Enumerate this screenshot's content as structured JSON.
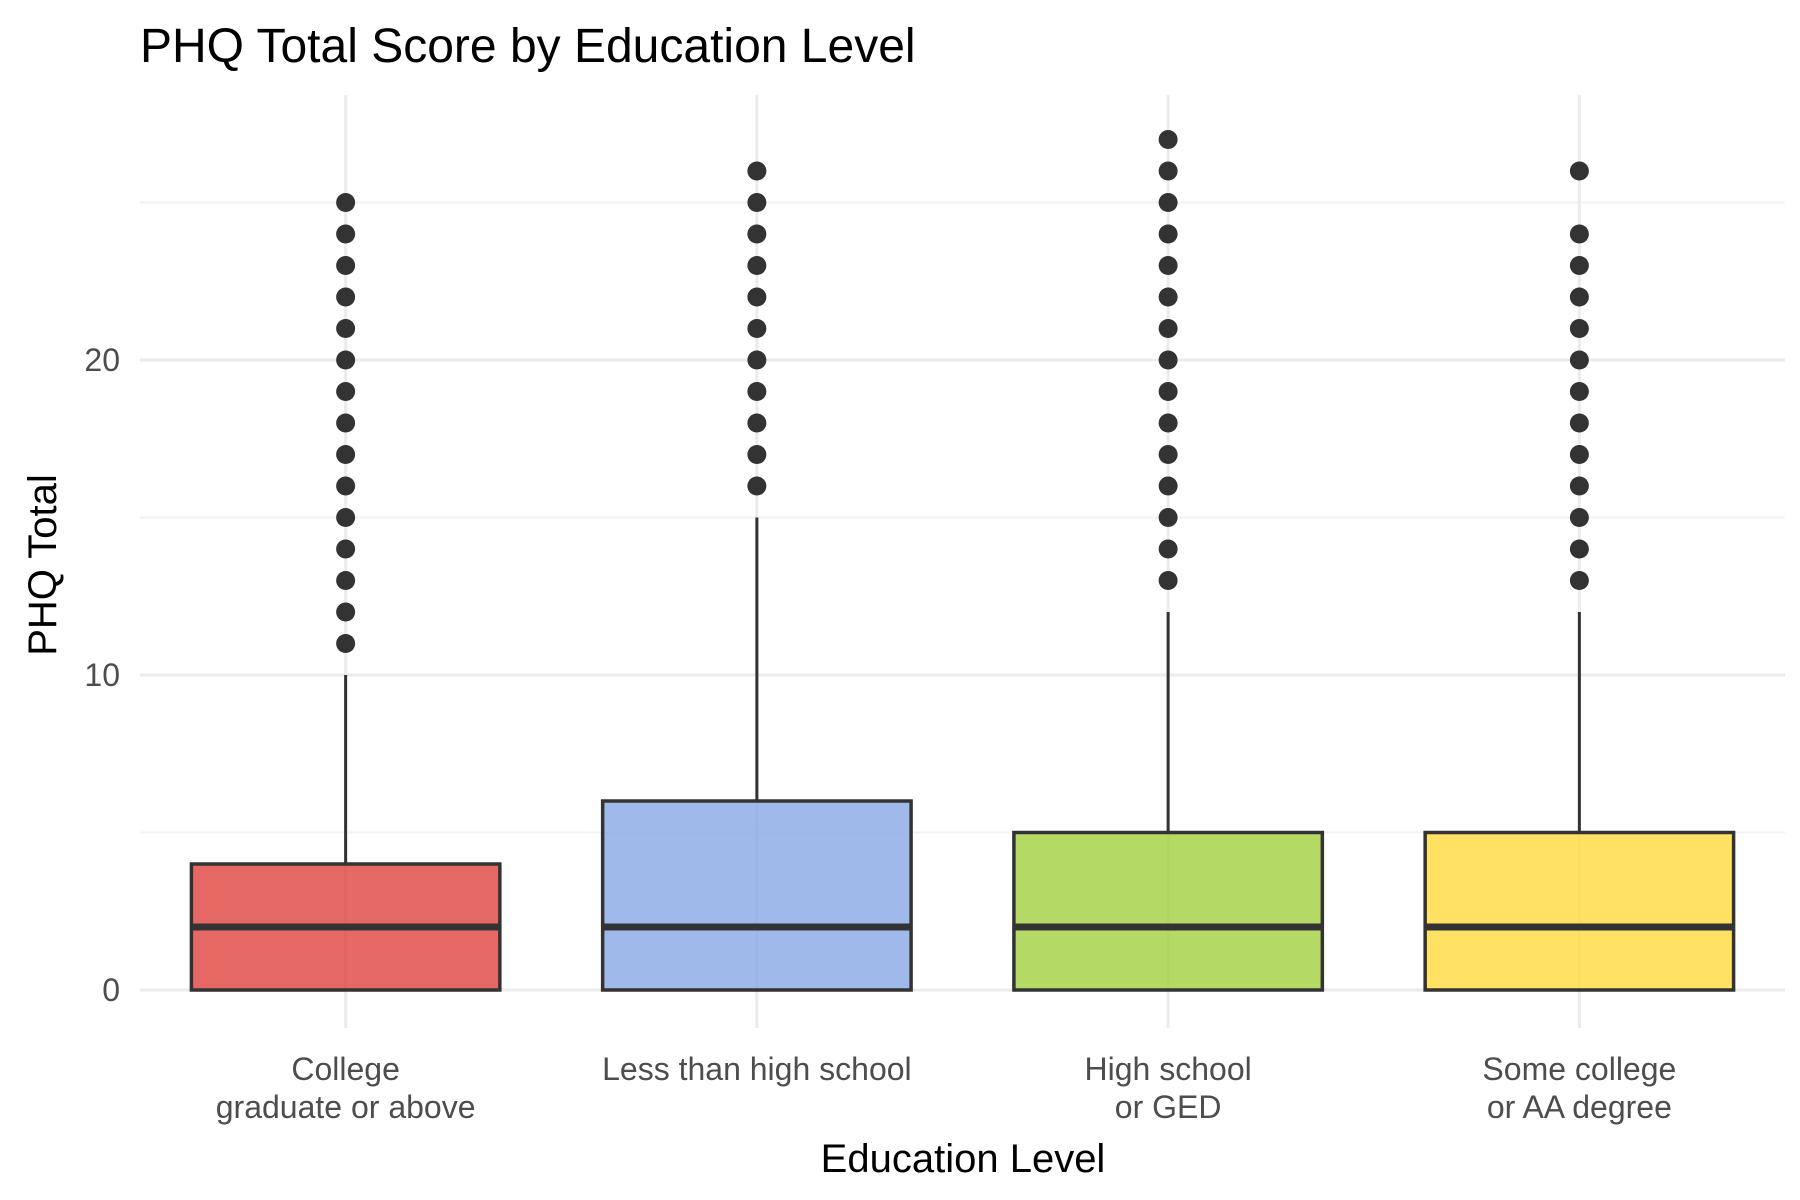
{
  "chart_data": {
    "type": "boxplot",
    "title": "PHQ Total Score by Education Level",
    "xlabel": "Education Level",
    "ylabel": "PHQ Total",
    "ylim": [
      -1.2,
      28.3
    ],
    "y_ticks": [
      0,
      10,
      20
    ],
    "grid": true,
    "legend": "none",
    "categories": [
      [
        "College",
        "graduate or above"
      ],
      [
        "Less than high school"
      ],
      [
        "High school",
        "or GED"
      ],
      [
        "Some college",
        "or AA degree"
      ]
    ],
    "boxes": [
      {
        "min": 0,
        "q1": 0,
        "median": 2,
        "q3": 4,
        "max": 10,
        "color": "#DE423D",
        "outliers": [
          11,
          12,
          13,
          14,
          15,
          16,
          17,
          18,
          19,
          20,
          21,
          22,
          23,
          24,
          25
        ]
      },
      {
        "min": 0,
        "q1": 0,
        "median": 2,
        "q3": 6,
        "max": 15,
        "color": "#87A8E6",
        "outliers": [
          16,
          17,
          18,
          19,
          20,
          21,
          22,
          23,
          24,
          25,
          26
        ]
      },
      {
        "min": 0,
        "q1": 0,
        "median": 2,
        "q3": 5,
        "max": 12,
        "color": "#A3CF3E",
        "outliers": [
          13,
          14,
          15,
          16,
          17,
          18,
          19,
          20,
          21,
          22,
          23,
          24,
          25,
          26,
          27
        ]
      },
      {
        "min": 0,
        "q1": 0,
        "median": 2,
        "q3": 5,
        "max": 12,
        "color": "#FFD93D",
        "outliers": [
          13,
          14,
          15,
          16,
          17,
          18,
          19,
          20,
          21,
          22,
          23,
          24,
          26
        ]
      }
    ]
  }
}
